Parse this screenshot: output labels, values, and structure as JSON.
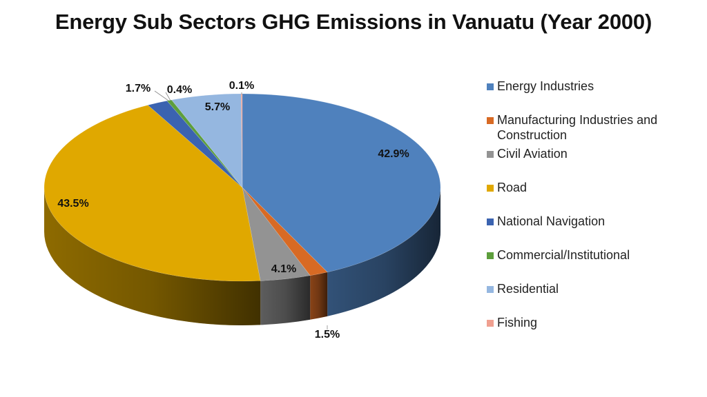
{
  "page": {
    "title": "Energy Sub Sectors GHG Emissions in Vanuatu (Year 2000)"
  },
  "chart_data": {
    "type": "pie",
    "title": "Energy Sub Sectors GHG Emissions in Vanuatu (Year 2000)",
    "style": "3d",
    "unit": "%",
    "legend_position": "right",
    "categories": [
      "Energy Industries",
      "Manufacturing Industries and Construction",
      "Civil Aviation",
      "Road",
      "National Navigation",
      "Commercial/Institutional",
      "Residential",
      "Fishing"
    ],
    "values": [
      42.9,
      1.5,
      4.1,
      43.5,
      1.7,
      0.4,
      5.7,
      0.1
    ],
    "labels": [
      "42.9%",
      "1.5%",
      "4.1%",
      "43.5%",
      "1.7%",
      "0.4%",
      "5.7%",
      "0.1%"
    ],
    "colors": [
      "#4f81bd",
      "#d86a24",
      "#939393",
      "#e0a800",
      "#3b63b0",
      "#5d9e3c",
      "#95b7e0",
      "#f0a090"
    ]
  }
}
